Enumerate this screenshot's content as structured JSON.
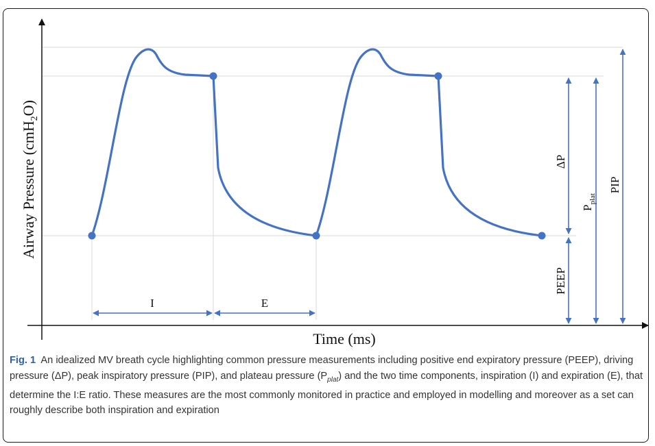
{
  "figure": {
    "y_axis_label": "Airway Pressure (cmH",
    "y_axis_sub": "2",
    "y_axis_tail": "O)",
    "x_axis_label": "Time (ms)",
    "phase_labels": {
      "inspiration": "I",
      "expiration": "E"
    },
    "measure_labels": {
      "delta_p": "ΔP",
      "p_plat": "P",
      "p_plat_sub": "plat",
      "pip": "PIP",
      "peep": "PEEP"
    },
    "colors": {
      "curve": "#4472c4",
      "axis": "#111111",
      "guide": "#d9d9d9"
    }
  },
  "caption": {
    "label": "Fig. 1",
    "text_before_sub": "  An idealized MV breath cycle highlighting common pressure measurements including positive end expiratory pressure (PEEP), driving pressure (ΔP), peak inspiratory pressure (PIP), and plateau pressure (P",
    "sub": "plat",
    "text_after_sub": ") and the two time components, inspiration (I) and expiration (E), that determine the I:E ratio. These measures are the most commonly monitored in practice and employed in modelling and moreover as a set can roughly describe both inspiration and expiration"
  }
}
